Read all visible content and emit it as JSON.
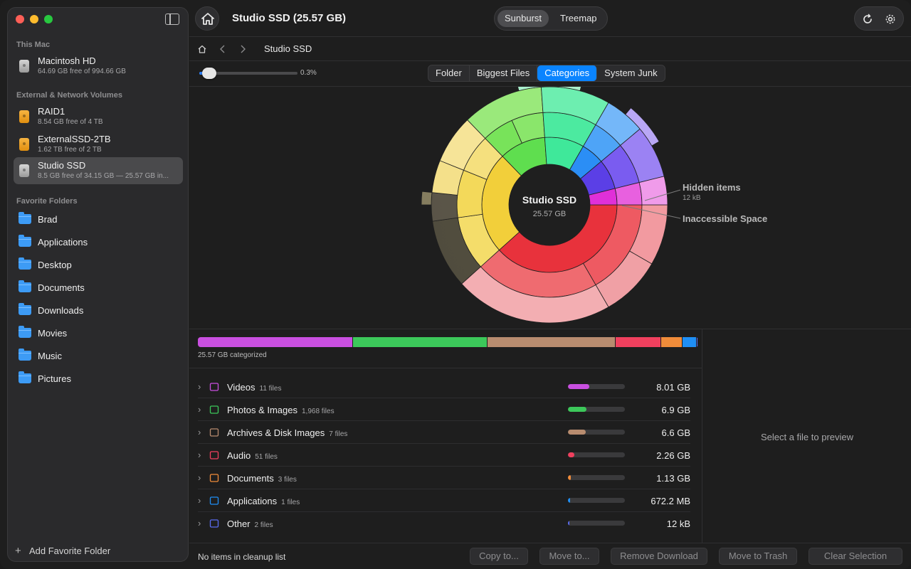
{
  "sidebar": {
    "sections": {
      "this_mac": "This Mac",
      "external": "External & Network Volumes",
      "favorites": "Favorite Folders"
    },
    "volumes": [
      {
        "name": "Macintosh HD",
        "sub": "64.69 GB free of 994.66 GB",
        "icon": "internal-drive-icon"
      },
      {
        "name": "RAID1",
        "sub": "8.54 GB free of 4 TB",
        "icon": "external-drive-icon"
      },
      {
        "name": "ExternalSSD-2TB",
        "sub": "1.62 TB free of 2 TB",
        "icon": "external-drive-icon"
      },
      {
        "name": "Studio SSD",
        "sub": "8.5 GB free of 34.15 GB — 25.57 GB in...",
        "icon": "removable-drive-icon",
        "selected": true
      }
    ],
    "favorites": [
      "Brad",
      "Applications",
      "Desktop",
      "Documents",
      "Downloads",
      "Movies",
      "Music",
      "Pictures"
    ],
    "add_favorite": "Add Favorite Folder"
  },
  "toolbar": {
    "title": "Studio SSD (25.57 GB)",
    "view_options": [
      "Sunburst",
      "Treemap"
    ],
    "active_view": "Sunburst"
  },
  "breadcrumb": {
    "current": "Studio SSD"
  },
  "filter": {
    "slider_value": "0.3%",
    "tabs": [
      "Folder",
      "Biggest Files",
      "Categories",
      "System Junk"
    ],
    "active_tab": "Categories"
  },
  "sunburst": {
    "center_title": "Studio SSD",
    "center_size": "25.57 GB",
    "label_hidden": "Hidden items",
    "label_hidden_size": "12 kB",
    "label_inaccessible": "Inaccessible Space"
  },
  "categories": {
    "summary": "25.57 GB categorized",
    "items": [
      {
        "name": "Videos",
        "count": "11 files",
        "size": "8.01 GB",
        "color": "#c94fe0",
        "fraction": 0.31,
        "icon": "film-icon"
      },
      {
        "name": "Photos & Images",
        "count": "1,968 files",
        "size": "6.9 GB",
        "color": "#3cc85a",
        "fraction": 0.27,
        "icon": "photo-icon"
      },
      {
        "name": "Archives & Disk Images",
        "count": "7 files",
        "size": "6.6 GB",
        "color": "#b88c6f",
        "fraction": 0.26,
        "icon": "box-icon"
      },
      {
        "name": "Audio",
        "count": "51 files",
        "size": "2.26 GB",
        "color": "#f0405e",
        "fraction": 0.09,
        "icon": "music-note-icon"
      },
      {
        "name": "Documents",
        "count": "3 files",
        "size": "1.13 GB",
        "color": "#f08c3a",
        "fraction": 0.045,
        "icon": "document-icon"
      },
      {
        "name": "Applications",
        "count": "1 files",
        "size": "672.2 MB",
        "color": "#1f8ff5",
        "fraction": 0.027,
        "icon": "app-icon"
      },
      {
        "name": "Other",
        "count": "2 files",
        "size": "12 kB",
        "color": "#5a6cf0",
        "fraction": 0.003,
        "icon": "question-icon"
      }
    ]
  },
  "preview": {
    "placeholder": "Select a file to preview"
  },
  "status": {
    "text": "No items in cleanup list",
    "buttons": [
      "Copy to...",
      "Move to...",
      "Remove Download",
      "Move to Trash",
      "Clear Selection"
    ]
  }
}
